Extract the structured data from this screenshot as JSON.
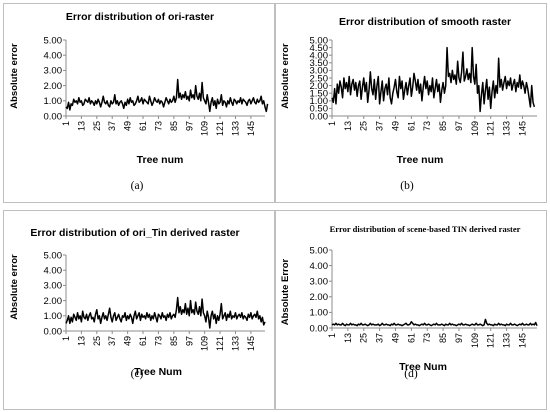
{
  "captions": [
    "(a)",
    "(b)",
    "(c)",
    "(d)"
  ],
  "chart_data": [
    {
      "type": "line",
      "title": "Error distribution of ori-raster",
      "xlabel": "Tree num",
      "ylabel": "Absolute error",
      "ylim": [
        0,
        5
      ],
      "yticks": [
        "0.00",
        "1.00",
        "2.00",
        "3.00",
        "4.00",
        "5.00"
      ],
      "xticks": [
        "1",
        "13",
        "25",
        "37",
        "49",
        "61",
        "73",
        "85",
        "97",
        "109",
        "121",
        "133",
        "145"
      ],
      "x_start": 1,
      "x_end": 156,
      "series": [
        {
          "values": [
            0.6,
            0.5,
            0.9,
            0.4,
            0.8,
            0.7,
            1.1,
            0.9,
            1.0,
            0.8,
            1.2,
            0.9,
            1.0,
            0.7,
            0.8,
            1.1,
            1.0,
            0.9,
            1.2,
            0.8,
            1.0,
            0.9,
            0.7,
            1.0,
            0.8,
            1.1,
            0.9,
            0.6,
            0.9,
            1.3,
            0.9,
            0.8,
            1.0,
            0.7,
            0.6,
            1.0,
            0.8,
            0.9,
            1.4,
            0.8,
            1.0,
            0.7,
            0.9,
            1.0,
            0.8,
            0.5,
            0.9,
            0.7,
            1.1,
            0.8,
            1.2,
            0.9,
            1.0,
            0.7,
            0.8,
            1.0,
            1.3,
            0.9,
            1.0,
            1.2,
            0.8,
            1.1,
            1.0,
            0.9,
            0.8,
            1.3,
            1.0,
            0.7,
            0.9,
            1.2,
            1.0,
            0.9,
            1.1,
            0.8,
            1.0,
            0.9,
            0.6,
            0.9,
            1.2,
            1.0,
            0.8,
            1.1,
            0.9,
            1.0,
            1.3,
            0.9,
            1.2,
            2.4,
            1.2,
            1.5,
            1.1,
            1.4,
            1.2,
            1.6,
            1.1,
            1.3,
            1.0,
            1.7,
            1.2,
            1.4,
            1.1,
            2.0,
            1.3,
            1.1,
            1.5,
            1.0,
            2.2,
            1.2,
            1.0,
            0.8,
            1.4,
            0.9,
            0.3,
            0.9,
            1.2,
            0.7,
            1.0,
            0.5,
            1.1,
            0.8,
            0.9,
            1.4,
            0.7,
            1.0,
            0.9,
            0.6,
            1.0,
            0.8,
            1.2,
            0.9,
            0.7,
            1.1,
            1.0,
            0.8,
            1.0,
            0.9,
            1.2,
            0.8,
            1.1,
            1.0,
            0.9,
            0.7,
            1.0,
            1.1,
            0.8,
            1.0,
            1.2,
            0.9,
            0.8,
            1.1,
            0.9,
            1.0,
            1.3,
            0.8,
            1.0,
            0.6,
            0.3,
            0.8
          ]
        }
      ]
    },
    {
      "type": "line",
      "title": "Error distribution of smooth raster",
      "xlabel": "Tree num",
      "ylabel": "Absolute error",
      "ylim": [
        0,
        5
      ],
      "yticks": [
        "0.00",
        "0.50",
        "1.00",
        "1.50",
        "2.00",
        "2.50",
        "3.00",
        "3.50",
        "4.00",
        "4.50",
        "5.00"
      ],
      "xticks": [
        "1",
        "13",
        "25",
        "37",
        "49",
        "61",
        "73",
        "85",
        "97",
        "109",
        "121",
        "133",
        "145"
      ],
      "x_start": 1,
      "x_end": 156,
      "series": [
        {
          "values": [
            1.2,
            0.9,
            1.8,
            0.8,
            2.1,
            1.5,
            2.3,
            1.9,
            1.2,
            2.5,
            1.8,
            2.2,
            1.6,
            2.6,
            1.4,
            2.1,
            2.4,
            1.7,
            2.2,
            1.3,
            2.0,
            2.3,
            1.1,
            1.9,
            2.5,
            1.6,
            2.2,
            0.9,
            1.7,
            2.9,
            1.8,
            1.4,
            2.4,
            1.1,
            2.0,
            2.6,
            0.8,
            1.6,
            2.3,
            1.0,
            1.8,
            2.1,
            1.4,
            2.5,
            1.2,
            0.8,
            1.5,
            1.9,
            2.4,
            1.6,
            1.2,
            2.6,
            1.8,
            2.3,
            1.1,
            1.7,
            2.2,
            1.4,
            2.0,
            2.5,
            1.3,
            1.9,
            2.8,
            2.3,
            1.7,
            2.4,
            1.5,
            2.1,
            1.0,
            1.9,
            2.6,
            1.8,
            2.3,
            1.4,
            2.0,
            1.6,
            2.5,
            1.2,
            1.8,
            2.4,
            1.6,
            2.1,
            0.9,
            1.7,
            2.2,
            1.5,
            2.0,
            4.5,
            2.6,
            2.8,
            2.2,
            3.0,
            2.4,
            2.7,
            2.1,
            3.6,
            2.5,
            2.2,
            2.9,
            4.2,
            2.3,
            2.6,
            3.1,
            2.4,
            2.8,
            2.2,
            4.5,
            2.6,
            2.1,
            3.4,
            1.5,
            2.0,
            0.3,
            1.4,
            2.2,
            0.8,
            1.7,
            2.4,
            1.1,
            1.9,
            0.5,
            1.6,
            2.3,
            1.2,
            2.0,
            1.5,
            3.8,
            1.9,
            2.4,
            1.7,
            2.2,
            2.6,
            1.8,
            2.3,
            2.0,
            2.5,
            1.7,
            2.1,
            2.4,
            1.6,
            2.2,
            1.9,
            2.7,
            1.8,
            2.3,
            2.0,
            1.5,
            2.2,
            1.8,
            1.2,
            0.6,
            2.0,
            0.9,
            0.6
          ]
        }
      ]
    },
    {
      "type": "line",
      "title": "Error distribution of ori_Tin derived raster",
      "xlabel": "Tree Num",
      "ylabel": "Absolute error",
      "ylim": [
        0,
        5
      ],
      "yticks": [
        "0.00",
        "1.00",
        "2.00",
        "3.00",
        "4.00",
        "5.00"
      ],
      "xticks": [
        "1",
        "13",
        "25",
        "37",
        "49",
        "61",
        "73",
        "85",
        "97",
        "109",
        "121",
        "133",
        "145"
      ],
      "x_start": 1,
      "x_end": 156,
      "series": [
        {
          "values": [
            0.5,
            0.7,
            1.0,
            0.5,
            0.9,
            0.6,
            1.1,
            0.9,
            0.7,
            1.2,
            0.8,
            1.0,
            0.6,
            1.3,
            0.9,
            0.8,
            1.1,
            0.7,
            1.0,
            1.2,
            0.8,
            0.9,
            0.6,
            1.1,
            1.4,
            0.8,
            1.0,
            0.5,
            0.9,
            1.2,
            0.8,
            1.0,
            0.7,
            1.1,
            1.5,
            0.9,
            0.6,
            1.0,
            1.2,
            0.7,
            0.9,
            1.1,
            0.8,
            0.6,
            1.0,
            0.9,
            1.2,
            0.7,
            1.0,
            0.8,
            1.1,
            0.9,
            0.5,
            1.0,
            1.3,
            0.8,
            1.0,
            1.2,
            0.7,
            1.1,
            0.9,
            1.0,
            0.8,
            1.2,
            0.9,
            1.1,
            0.7,
            1.0,
            0.8,
            1.2,
            0.9,
            0.6,
            1.1,
            1.0,
            0.8,
            1.2,
            0.9,
            1.0,
            0.7,
            1.1,
            0.9,
            1.2,
            0.8,
            1.0,
            1.1,
            0.9,
            1.4,
            2.2,
            1.2,
            1.6,
            1.1,
            1.4,
            1.2,
            1.8,
            1.1,
            1.5,
            1.0,
            2.0,
            1.2,
            1.4,
            1.1,
            1.9,
            1.3,
            1.1,
            1.6,
            1.0,
            2.1,
            1.2,
            1.0,
            0.6,
            1.3,
            0.9,
            0.2,
            1.0,
            1.3,
            0.8,
            1.1,
            0.5,
            1.0,
            0.7,
            1.1,
            1.8,
            0.8,
            1.0,
            1.2,
            0.7,
            1.1,
            0.9,
            1.3,
            0.8,
            1.0,
            0.9,
            1.2,
            0.8,
            1.0,
            1.1,
            0.9,
            1.2,
            0.8,
            1.0,
            0.9,
            0.7,
            1.1,
            0.9,
            1.2,
            0.8,
            1.0,
            1.1,
            0.9,
            1.3,
            0.8,
            1.0,
            0.6,
            0.9,
            0.4,
            0.6
          ]
        }
      ]
    },
    {
      "type": "line",
      "title": "Error distribution of scene-based TIN derived raster",
      "xlabel": "Tree Num",
      "ylabel": "Absolute Error",
      "ylim": [
        0,
        5
      ],
      "yticks": [
        "0.00",
        "1.00",
        "2.00",
        "3.00",
        "4.00",
        "5.00"
      ],
      "xticks": [
        "1",
        "13",
        "25",
        "37",
        "49",
        "61",
        "73",
        "85",
        "97",
        "109",
        "121",
        "133",
        "145"
      ],
      "x_start": 1,
      "x_end": 156,
      "series": [
        {
          "values": [
            0.2,
            0.25,
            0.2,
            0.3,
            0.2,
            0.25,
            0.2,
            0.2,
            0.3,
            0.2,
            0.15,
            0.25,
            0.2,
            0.2,
            0.3,
            0.2,
            0.25,
            0.2,
            0.2,
            0.15,
            0.25,
            0.2,
            0.3,
            0.2,
            0.2,
            0.25,
            0.2,
            0.15,
            0.2,
            0.3,
            0.2,
            0.25,
            0.2,
            0.2,
            0.2,
            0.25,
            0.15,
            0.2,
            0.3,
            0.2,
            0.2,
            0.25,
            0.2,
            0.2,
            0.15,
            0.25,
            0.2,
            0.3,
            0.2,
            0.2,
            0.25,
            0.2,
            0.2,
            0.15,
            0.2,
            0.25,
            0.3,
            0.2,
            0.2,
            0.25,
            0.4,
            0.3,
            0.2,
            0.25,
            0.2,
            0.2,
            0.15,
            0.2,
            0.25,
            0.2,
            0.3,
            0.2,
            0.2,
            0.25,
            0.2,
            0.15,
            0.2,
            0.25,
            0.2,
            0.3,
            0.2,
            0.2,
            0.2,
            0.25,
            0.2,
            0.15,
            0.25,
            0.2,
            0.2,
            0.3,
            0.2,
            0.25,
            0.2,
            0.2,
            0.15,
            0.2,
            0.25,
            0.2,
            0.3,
            0.2,
            0.2,
            0.25,
            0.2,
            0.2,
            0.15,
            0.2,
            0.25,
            0.2,
            0.2,
            0.3,
            0.2,
            0.2,
            0.25,
            0.2,
            0.15,
            0.2,
            0.55,
            0.3,
            0.2,
            0.25,
            0.2,
            0.2,
            0.15,
            0.25,
            0.2,
            0.2,
            0.3,
            0.2,
            0.25,
            0.2,
            0.2,
            0.15,
            0.25,
            0.2,
            0.2,
            0.3,
            0.2,
            0.2,
            0.25,
            0.2,
            0.15,
            0.2,
            0.25,
            0.2,
            0.3,
            0.2,
            0.2,
            0.25,
            0.2,
            0.2,
            0.3,
            0.2,
            0.25,
            0.2,
            0.35,
            0.15
          ]
        }
      ]
    }
  ]
}
